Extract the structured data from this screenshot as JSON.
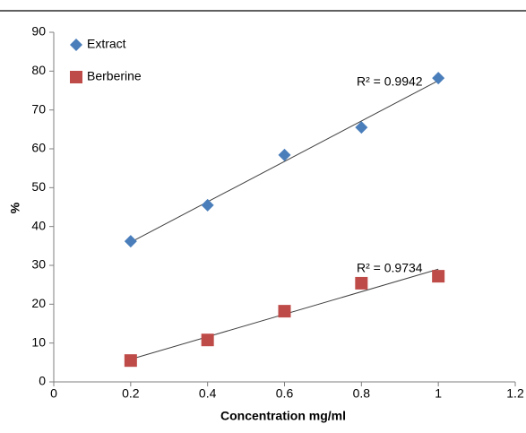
{
  "chart_data": {
    "type": "scatter",
    "x_label": "Concentration mg/ml",
    "y_label": "%",
    "x": [
      0.2,
      0.4,
      0.6,
      0.8,
      1
    ],
    "series": [
      {
        "name": "Extract",
        "color": "#4a7ebb",
        "marker": "diamond",
        "values": [
          36.2,
          45.5,
          58.4,
          65.5,
          78.2
        ]
      },
      {
        "name": "Berberine",
        "color": "#be4b48",
        "marker": "square",
        "values": [
          5.5,
          10.8,
          18.2,
          25.4,
          27.2
        ]
      }
    ],
    "annotations": [
      "R² = 0.9942",
      "R² = 0.9734"
    ],
    "trendline": true,
    "xlim": [
      0,
      1.2
    ],
    "xticks": [
      0,
      0.2,
      0.4,
      0.6,
      0.8,
      1,
      1.2
    ],
    "ylim": [
      0,
      90
    ],
    "yticks": [
      0,
      10,
      20,
      30,
      40,
      50,
      60,
      70,
      80,
      90
    ],
    "legend": "top-left"
  }
}
